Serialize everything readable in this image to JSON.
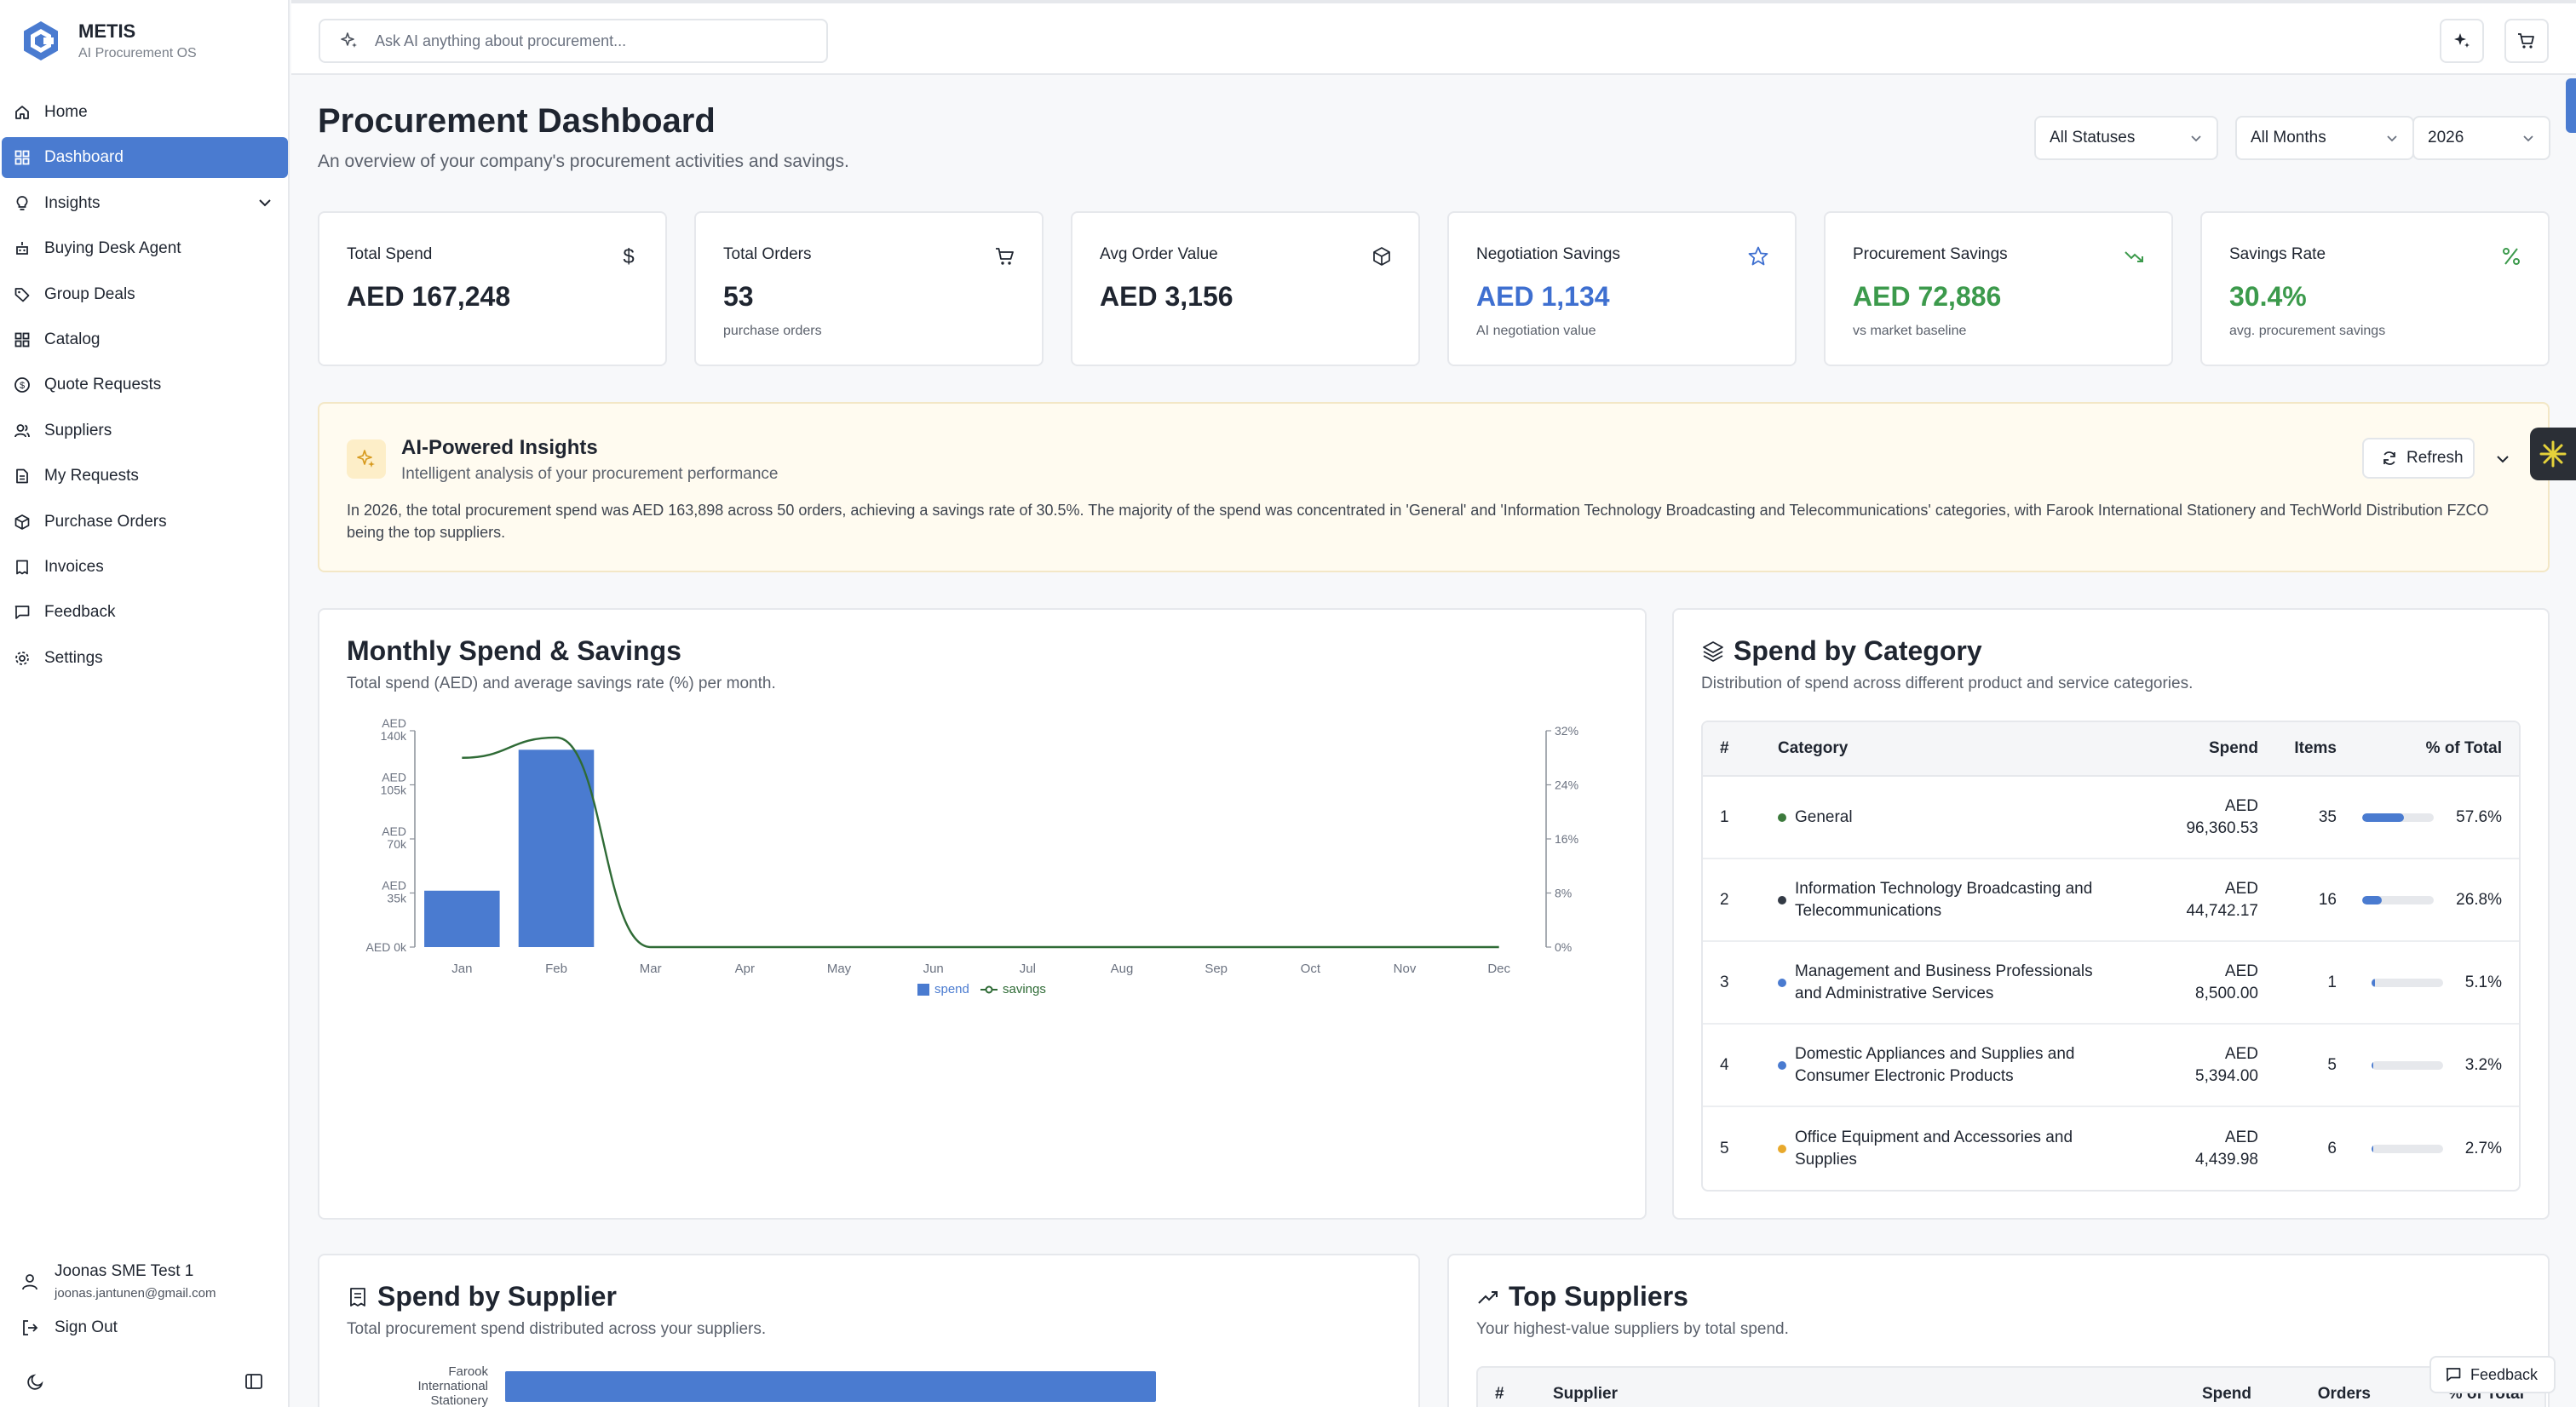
{
  "brand": {
    "name": "METIS",
    "tagline": "AI Procurement OS"
  },
  "sidebar": {
    "items": [
      {
        "label": "Home",
        "icon": "home-icon"
      },
      {
        "label": "Dashboard",
        "icon": "dashboard-icon",
        "active": true
      },
      {
        "label": "Insights",
        "icon": "lightbulb-icon",
        "expandable": true
      },
      {
        "label": "Buying Desk Agent",
        "icon": "agent-icon"
      },
      {
        "label": "Group Deals",
        "icon": "tag-icon"
      },
      {
        "label": "Catalog",
        "icon": "grid-icon"
      },
      {
        "label": "Quote Requests",
        "icon": "dollar-circle-icon"
      },
      {
        "label": "Suppliers",
        "icon": "users-icon"
      },
      {
        "label": "My Requests",
        "icon": "document-icon"
      },
      {
        "label": "Purchase Orders",
        "icon": "box-icon"
      },
      {
        "label": "Invoices",
        "icon": "receipt-icon"
      },
      {
        "label": "Feedback",
        "icon": "message-icon"
      },
      {
        "label": "Settings",
        "icon": "gear-icon"
      }
    ],
    "user": {
      "name": "Joonas SME Test 1",
      "email": "joonas.jantunen@gmail.com"
    },
    "sign_out": "Sign Out"
  },
  "topbar": {
    "search_placeholder": "Ask AI anything about procurement..."
  },
  "header": {
    "title": "Procurement Dashboard",
    "subtitle": "An overview of your company's procurement activities and savings.",
    "filters": {
      "status": "All Statuses",
      "month": "All Months",
      "year": "2026"
    }
  },
  "stats": [
    {
      "label": "Total Spend",
      "value": "AED 167,248",
      "sub": "",
      "icon": "dollar-icon"
    },
    {
      "label": "Total Orders",
      "value": "53",
      "sub": "purchase orders",
      "icon": "cart-icon"
    },
    {
      "label": "Avg Order Value",
      "value": "AED 3,156",
      "sub": "",
      "icon": "package-icon"
    },
    {
      "label": "Negotiation Savings",
      "value": "AED 1,134",
      "sub": "AI negotiation value",
      "icon": "star-icon"
    },
    {
      "label": "Procurement Savings",
      "value": "AED 72,886",
      "sub": "vs market baseline",
      "icon": "trending-icon"
    },
    {
      "label": "Savings Rate",
      "value": "30.4%",
      "sub": "avg. procurement savings",
      "icon": "percent-icon"
    }
  ],
  "insights": {
    "title": "AI-Powered Insights",
    "subtitle": "Intelligent analysis of your procurement performance",
    "text": "In 2026, the total procurement spend was AED 163,898 across 50 orders, achieving a savings rate of 30.5%. The majority of the spend was concentrated in 'General' and 'Information Technology Broadcasting and Telecommunications' categories, with Farook International Stationery and TechWorld Distribution FZCO being the top suppliers.",
    "refresh_label": "Refresh"
  },
  "monthly": {
    "title": "Monthly Spend & Savings",
    "subtitle": "Total spend (AED) and average savings rate (%) per month."
  },
  "chart_data": {
    "type": "bar",
    "categories": [
      "Jan",
      "Feb",
      "Mar",
      "Apr",
      "May",
      "Jun",
      "Jul",
      "Aug",
      "Sep",
      "Oct",
      "Nov",
      "Dec"
    ],
    "series": [
      {
        "name": "spend",
        "type": "bar",
        "axis": "left",
        "color": "#4a7bd0",
        "values": [
          36500,
          127700,
          0,
          0,
          0,
          0,
          0,
          0,
          0,
          0,
          0,
          0
        ]
      },
      {
        "name": "savings",
        "type": "line",
        "axis": "right",
        "color": "#2f6b36",
        "values": [
          28,
          31,
          0,
          0,
          0,
          0,
          0,
          0,
          0,
          0,
          0,
          0
        ]
      }
    ],
    "y_left": {
      "ticks": [
        "AED 0k",
        "AED 35k",
        "AED 70k",
        "AED 105k",
        "AED 140k"
      ],
      "ylim": [
        0,
        140000
      ]
    },
    "y_right": {
      "ticks": [
        "0%",
        "8%",
        "16%",
        "24%",
        "32%"
      ],
      "ylim": [
        0,
        32
      ]
    },
    "legend": "bottom-center",
    "grid": false
  },
  "category": {
    "title": "Spend by Category",
    "subtitle": "Distribution of spend across different product and service categories.",
    "columns": [
      "#",
      "Category",
      "Spend",
      "Items",
      "% of Total"
    ],
    "rows": [
      {
        "num": "1",
        "name": "General",
        "spend_line1": "AED",
        "spend_line2": "96,360.53",
        "items": "35",
        "pct": "57.6%",
        "share": 57.6,
        "color": "#3c7a3c"
      },
      {
        "num": "2",
        "name": "Information Technology Broadcasting and Telecommunications",
        "spend_line1": "AED",
        "spend_line2": "44,742.17",
        "items": "16",
        "pct": "26.8%",
        "share": 26.8,
        "color": "#333a45"
      },
      {
        "num": "3",
        "name": "Management and Business Professionals and Administrative Services",
        "spend_line1": "AED",
        "spend_line2": "8,500.00",
        "items": "1",
        "pct": "5.1%",
        "share": 5.1,
        "color": "#4a7bd0"
      },
      {
        "num": "4",
        "name": "Domestic Appliances and Supplies and Consumer Electronic Products",
        "spend_line1": "AED",
        "spend_line2": "5,394.00",
        "items": "5",
        "pct": "3.2%",
        "share": 3.2,
        "color": "#4a7bd0"
      },
      {
        "num": "5",
        "name": "Office Equipment and Accessories and Supplies",
        "spend_line1": "AED",
        "spend_line2": "4,439.98",
        "items": "6",
        "pct": "2.7%",
        "share": 2.7,
        "color": "#e8a92c"
      }
    ]
  },
  "supplier": {
    "title": "Spend by Supplier",
    "subtitle": "Total procurement spend distributed across your suppliers.",
    "first_label": "Farook International Stationery"
  },
  "top_suppliers": {
    "title": "Top Suppliers",
    "subtitle": "Your highest-value suppliers by total spend.",
    "columns": [
      "#",
      "Supplier",
      "Spend",
      "Orders",
      "% of Total"
    ]
  },
  "feedback_button": "Feedback"
}
